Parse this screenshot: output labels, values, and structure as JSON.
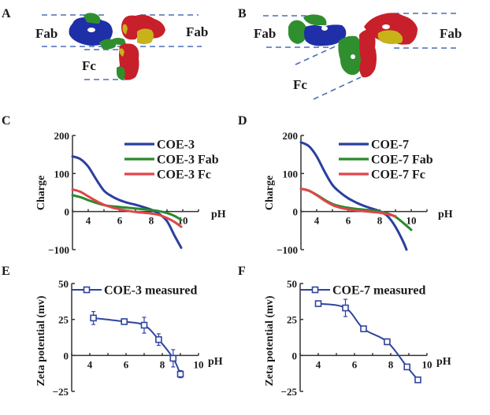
{
  "panels": {
    "A": {
      "letter": "A",
      "labels": {
        "fab_left": "Fab",
        "fab_right": "Fab",
        "fc": "Fc"
      }
    },
    "B": {
      "letter": "B",
      "labels": {
        "fab_left": "Fab",
        "fab_right": "Fab",
        "fc": "Fc"
      }
    },
    "C": {
      "letter": "C"
    },
    "D": {
      "letter": "D"
    },
    "E": {
      "letter": "E"
    },
    "F": {
      "letter": "F"
    }
  },
  "colors": {
    "blue": "#2b3f9e",
    "green": "#2a8a2e",
    "red": "#e0454a",
    "measured": "#2e44a0",
    "mol_blue": "#1f2fa8",
    "mol_green": "#2f8f2f",
    "mol_red": "#c8202a",
    "mol_yellow": "#c8b21a"
  },
  "chart_data": [
    {
      "id": "C",
      "type": "line",
      "title": "",
      "xlabel": "pH",
      "ylabel": "Charge",
      "xlim": [
        3,
        11
      ],
      "ylim": [
        -100,
        200
      ],
      "xticks": [
        4,
        6,
        8,
        10
      ],
      "xtick_labels": [
        "4",
        "6",
        "8",
        "10"
      ],
      "yticks": [
        200,
        100,
        0,
        -100
      ],
      "ytick_labels": [
        "200",
        "100",
        "0",
        "−100"
      ],
      "legend": "top-right",
      "series": [
        {
          "name": "COE-3",
          "color": "#2b3f9e",
          "x": [
            3,
            3.5,
            4,
            4.5,
            5,
            5.5,
            6,
            6.5,
            7,
            7.5,
            8,
            8.5,
            9,
            9.5,
            9.9
          ],
          "y": [
            145,
            138,
            118,
            85,
            55,
            40,
            30,
            23,
            18,
            12,
            5,
            -6,
            -25,
            -65,
            -95
          ]
        },
        {
          "name": "COE-3 Fab",
          "color": "#2a8a2e",
          "x": [
            3,
            3.5,
            4,
            4.5,
            5,
            5.5,
            6,
            6.5,
            7,
            7.5,
            8,
            8.5,
            9,
            9.5,
            9.9
          ],
          "y": [
            43,
            38,
            30,
            23,
            17,
            14,
            12,
            10,
            8,
            6,
            4,
            1,
            -4,
            -12,
            -22
          ]
        },
        {
          "name": "COE-3 Fc",
          "color": "#e0454a",
          "x": [
            3,
            3.5,
            4,
            4.5,
            5,
            5.5,
            6,
            6.5,
            7,
            7.5,
            8,
            8.5,
            9,
            9.5,
            9.9
          ],
          "y": [
            58,
            52,
            40,
            28,
            18,
            11,
            6,
            2,
            -1,
            -3,
            -5,
            -9,
            -17,
            -28,
            -40
          ]
        }
      ]
    },
    {
      "id": "D",
      "type": "line",
      "title": "",
      "xlabel": "pH",
      "ylabel": "Charge",
      "xlim": [
        3,
        11
      ],
      "ylim": [
        -100,
        200
      ],
      "xticks": [
        4,
        6,
        8,
        10
      ],
      "xtick_labels": [
        "4",
        "6",
        "8",
        "10"
      ],
      "yticks": [
        200,
        100,
        0,
        -100
      ],
      "ytick_labels": [
        "200",
        "100",
        "0",
        "−100"
      ],
      "legend": "top-right",
      "series": [
        {
          "name": "COE-7",
          "color": "#2b3f9e",
          "x": [
            3,
            3.5,
            4,
            4.5,
            5,
            5.5,
            6,
            6.5,
            7,
            7.5,
            8,
            8.5,
            9,
            9.5,
            9.7
          ],
          "y": [
            182,
            172,
            145,
            105,
            70,
            50,
            35,
            24,
            15,
            8,
            1,
            -12,
            -40,
            -80,
            -100
          ]
        },
        {
          "name": "COE-7 Fab",
          "color": "#2a8a2e",
          "x": [
            3,
            3.5,
            4,
            4.5,
            5,
            5.5,
            6,
            6.5,
            7,
            7.5,
            8,
            8.5,
            9,
            9.5,
            10
          ],
          "y": [
            60,
            55,
            44,
            31,
            20,
            14,
            10,
            7,
            5,
            3,
            0,
            -5,
            -14,
            -30,
            -48
          ]
        },
        {
          "name": "COE-7 Fc",
          "color": "#e0454a",
          "x": [
            3,
            3.5,
            4,
            4.5,
            5,
            5.5,
            6,
            6.5,
            7,
            7.5,
            8,
            8.5,
            9
          ],
          "y": [
            60,
            55,
            43,
            29,
            17,
            10,
            6,
            3,
            1,
            -1,
            -3,
            -7,
            -12
          ]
        }
      ]
    },
    {
      "id": "E",
      "type": "line",
      "title": "",
      "xlabel": "pH",
      "ylabel": "Zeta potential (mv)",
      "xlim": [
        3,
        10
      ],
      "ylim": [
        -25,
        50
      ],
      "xticks": [
        4,
        6,
        8,
        10
      ],
      "xtick_labels": [
        "4",
        "6",
        "8",
        "10"
      ],
      "yticks": [
        50,
        25,
        0,
        -25
      ],
      "ytick_labels": [
        "50",
        "25",
        "0",
        "−25"
      ],
      "legend": "top",
      "series": [
        {
          "name": "COE-3 measured",
          "color": "#2e44a0",
          "marker": "square-open",
          "x": [
            4.2,
            5.9,
            7.0,
            7.8,
            8.6,
            9.0
          ],
          "y": [
            26,
            23.5,
            21,
            11,
            -2,
            -13
          ],
          "err": [
            4.5,
            1,
            5.5,
            4,
            6,
            2.5
          ]
        }
      ]
    },
    {
      "id": "F",
      "type": "line",
      "title": "",
      "xlabel": "pH",
      "ylabel": "Zeta potential (mv)",
      "xlim": [
        3,
        10
      ],
      "ylim": [
        -25,
        50
      ],
      "xticks": [
        4,
        6,
        8,
        10
      ],
      "xtick_labels": [
        "4",
        "6",
        "8",
        "10"
      ],
      "yticks": [
        50,
        25,
        0,
        -25
      ],
      "ytick_labels": [
        "50",
        "25",
        "0",
        "−25"
      ],
      "legend": "top",
      "series": [
        {
          "name": "COE-7 measured",
          "color": "#2e44a0",
          "marker": "square-open",
          "x": [
            4.0,
            5.5,
            6.5,
            7.8,
            8.9,
            9.5
          ],
          "y": [
            36,
            33,
            18.5,
            9.5,
            -8,
            -17
          ],
          "err": [
            1,
            6,
            1.5,
            2,
            1,
            1
          ]
        }
      ]
    }
  ]
}
